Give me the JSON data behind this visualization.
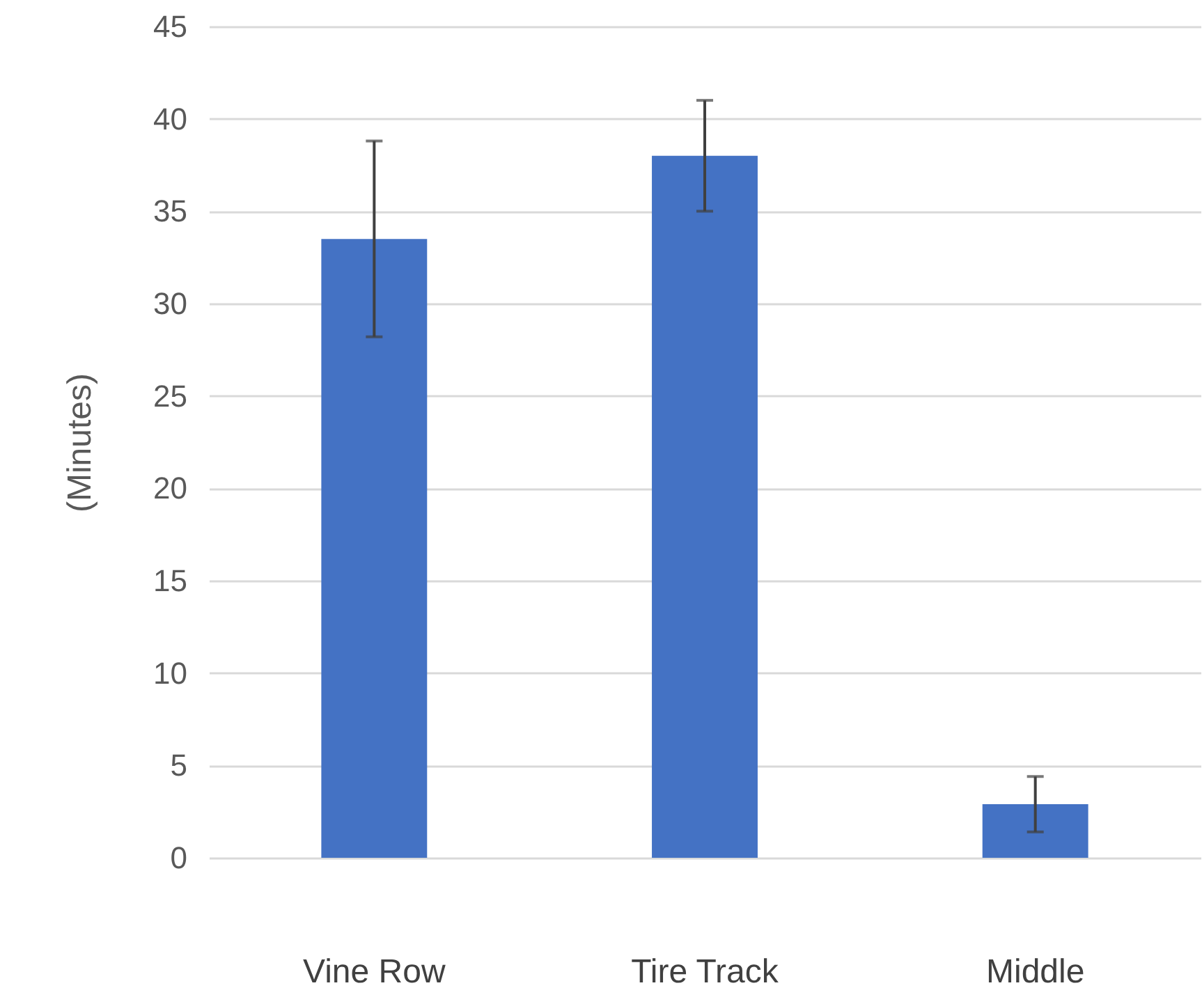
{
  "chart_data": {
    "type": "bar",
    "ylabel": "(Minutes)",
    "categories": [
      "Vine Row",
      "Tire Track",
      "Middle"
    ],
    "values": [
      33.5,
      38,
      2.9
    ],
    "color": "#4472c4",
    "errors": [
      5.3,
      3,
      1.5
    ],
    "ylim": [
      0,
      45
    ],
    "yticks": [
      0,
      5,
      10,
      15,
      20,
      25,
      30,
      35,
      40,
      45
    ],
    "grid": "y"
  }
}
